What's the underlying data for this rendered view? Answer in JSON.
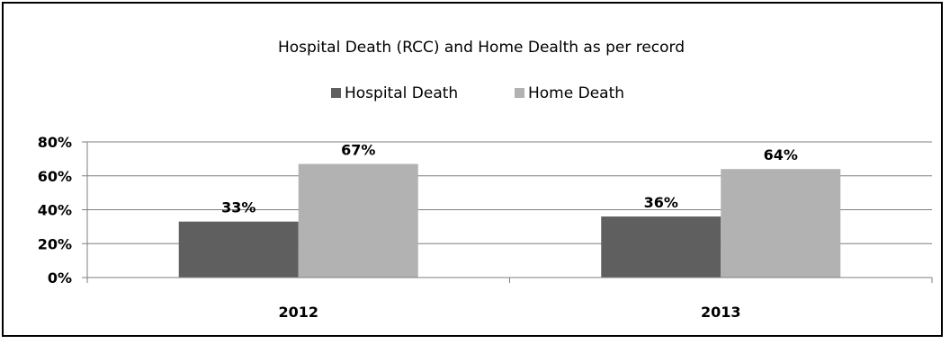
{
  "chart_data": {
    "type": "bar",
    "title": "Hospital Death (RCC) and Home Dealth as per record",
    "categories": [
      "2012",
      "2013"
    ],
    "series": [
      {
        "name": "Hospital Death",
        "values": [
          33,
          36
        ],
        "labels": [
          "33%",
          "36%"
        ],
        "color": "#5f5f5f"
      },
      {
        "name": "Home Death",
        "values": [
          67,
          64
        ],
        "labels": [
          "67%",
          "64%"
        ],
        "color": "#b2b2b2"
      }
    ],
    "ylim": [
      0,
      80
    ],
    "yticks": [
      0,
      20,
      40,
      60,
      80
    ],
    "ytick_labels": [
      "0%",
      "20%",
      "40%",
      "60%",
      "80%"
    ],
    "grid": true,
    "legend_position": "top"
  }
}
